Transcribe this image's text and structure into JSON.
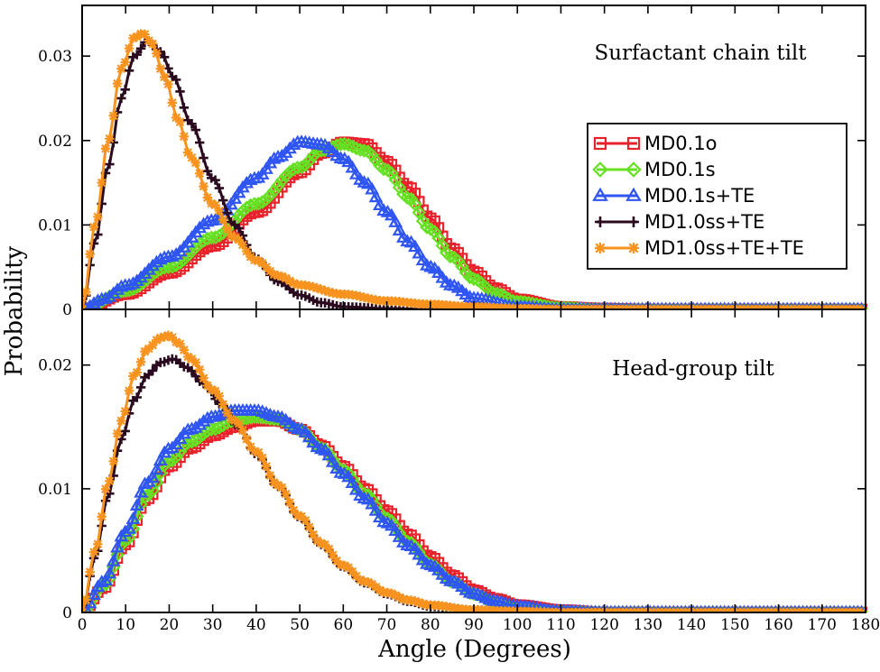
{
  "figure": {
    "xlabel": "Angle (Degrees)",
    "ylabel": "Probability"
  },
  "colors": {
    "MD0.1o": "#e8222b",
    "MD0.1s": "#66e022",
    "MD0.1s+TE": "#2f55f2",
    "MD1.0ss+TE": "#2a0a1e",
    "MD1.0ss+TE+TE": "#f7931e"
  },
  "chart_data": [
    {
      "type": "line",
      "panel": "top",
      "title": "Surfactant chain tilt",
      "xlabel": "Angle (Degrees)",
      "ylabel": "Probability",
      "xlim": [
        0,
        180
      ],
      "ylim": [
        0,
        0.036
      ],
      "xticks": [
        0,
        10,
        20,
        30,
        40,
        50,
        60,
        70,
        80,
        90,
        100,
        110,
        120,
        130,
        140,
        150,
        160,
        170,
        180
      ],
      "yticks": [
        0,
        0.01,
        0.02,
        0.03
      ],
      "ytick_labels": [
        "0",
        "0.01",
        "0.02",
        "0.03"
      ],
      "legend": {
        "position": "right",
        "entries": [
          "MD0.1o",
          "MD0.1s",
          "MD0.1s+TE",
          "MD1.0ss+TE",
          "MD1.0ss+TE+TE"
        ]
      },
      "series": [
        {
          "name": "MD0.1o",
          "marker": "square",
          "points": [
            [
              0,
              0
            ],
            [
              10,
              0.0018
            ],
            [
              20,
              0.0043
            ],
            [
              30,
              0.0075
            ],
            [
              40,
              0.0115
            ],
            [
              50,
              0.0162
            ],
            [
              55,
              0.0185
            ],
            [
              60,
              0.0198
            ],
            [
              65,
              0.0196
            ],
            [
              70,
              0.0175
            ],
            [
              75,
              0.0145
            ],
            [
              80,
              0.0108
            ],
            [
              85,
              0.0072
            ],
            [
              90,
              0.0045
            ],
            [
              95,
              0.0025
            ],
            [
              100,
              0.0012
            ],
            [
              110,
              0.0003
            ],
            [
              120,
              0.0001
            ],
            [
              130,
              0
            ],
            [
              180,
              0
            ]
          ]
        },
        {
          "name": "MD0.1s",
          "marker": "diamond",
          "points": [
            [
              0,
              0
            ],
            [
              10,
              0.0022
            ],
            [
              20,
              0.005
            ],
            [
              30,
              0.0085
            ],
            [
              40,
              0.0125
            ],
            [
              50,
              0.0168
            ],
            [
              55,
              0.0188
            ],
            [
              60,
              0.0196
            ],
            [
              65,
              0.0188
            ],
            [
              70,
              0.0165
            ],
            [
              75,
              0.0132
            ],
            [
              80,
              0.0095
            ],
            [
              85,
              0.0062
            ],
            [
              90,
              0.0036
            ],
            [
              95,
              0.0019
            ],
            [
              100,
              0.0009
            ],
            [
              110,
              0.0002
            ],
            [
              120,
              0
            ],
            [
              180,
              0
            ]
          ]
        },
        {
          "name": "MD0.1s+TE",
          "marker": "triangle",
          "points": [
            [
              0,
              0
            ],
            [
              5,
              0.0012
            ],
            [
              10,
              0.0028
            ],
            [
              20,
              0.0062
            ],
            [
              30,
              0.0105
            ],
            [
              40,
              0.0155
            ],
            [
              45,
              0.018
            ],
            [
              50,
              0.0198
            ],
            [
              55,
              0.0195
            ],
            [
              60,
              0.0178
            ],
            [
              65,
              0.015
            ],
            [
              70,
              0.0115
            ],
            [
              75,
              0.008
            ],
            [
              80,
              0.005
            ],
            [
              85,
              0.0028
            ],
            [
              90,
              0.0013
            ],
            [
              100,
              0.0003
            ],
            [
              110,
              0
            ],
            [
              180,
              0
            ]
          ]
        },
        {
          "name": "MD1.0ss+TE",
          "marker": "plus",
          "points": [
            [
              0,
              0
            ],
            [
              3,
              0.008
            ],
            [
              6,
              0.017
            ],
            [
              9,
              0.025
            ],
            [
              12,
              0.03
            ],
            [
              15,
              0.0318
            ],
            [
              18,
              0.0305
            ],
            [
              21,
              0.0275
            ],
            [
              25,
              0.022
            ],
            [
              30,
              0.0155
            ],
            [
              35,
              0.01
            ],
            [
              40,
              0.006
            ],
            [
              45,
              0.0033
            ],
            [
              50,
              0.0017
            ],
            [
              55,
              0.0008
            ],
            [
              60,
              0.0003
            ],
            [
              70,
              0.0001
            ],
            [
              80,
              0
            ],
            [
              180,
              0
            ]
          ]
        },
        {
          "name": "MD1.0ss+TE+TE",
          "marker": "star",
          "points": [
            [
              0,
              0
            ],
            [
              3,
              0.01
            ],
            [
              6,
              0.02
            ],
            [
              9,
              0.0285
            ],
            [
              12,
              0.0322
            ],
            [
              14,
              0.0327
            ],
            [
              16,
              0.0315
            ],
            [
              19,
              0.0275
            ],
            [
              22,
              0.0225
            ],
            [
              25,
              0.018
            ],
            [
              30,
              0.0125
            ],
            [
              35,
              0.0085
            ],
            [
              40,
              0.0058
            ],
            [
              45,
              0.004
            ],
            [
              50,
              0.0029
            ],
            [
              60,
              0.0018
            ],
            [
              70,
              0.001
            ],
            [
              80,
              0.0006
            ],
            [
              90,
              0.0003
            ],
            [
              100,
              0.0001
            ],
            [
              110,
              0
            ],
            [
              180,
              0
            ]
          ]
        }
      ]
    },
    {
      "type": "line",
      "panel": "bottom",
      "title": "Head-group tilt",
      "xlabel": "Angle (Degrees)",
      "ylabel": "Probability",
      "xlim": [
        0,
        180
      ],
      "ylim": [
        0,
        0.0245
      ],
      "xticks": [
        0,
        10,
        20,
        30,
        40,
        50,
        60,
        70,
        80,
        90,
        100,
        110,
        120,
        130,
        140,
        150,
        160,
        170,
        180
      ],
      "xtick_labels": [
        "0",
        "10",
        "20",
        "30",
        "40",
        "50",
        "60",
        "70",
        "80",
        "90",
        "100",
        "110",
        "120",
        "130",
        "140",
        "150",
        "160",
        "170",
        "180"
      ],
      "yticks": [
        0,
        0.01,
        0.02
      ],
      "ytick_labels": [
        "0",
        "0.01",
        "0.02"
      ],
      "series": [
        {
          "name": "MD0.1o",
          "marker": "square",
          "points": [
            [
              0,
              0
            ],
            [
              5,
              0.002
            ],
            [
              10,
              0.0055
            ],
            [
              15,
              0.0092
            ],
            [
              20,
              0.0118
            ],
            [
              25,
              0.0133
            ],
            [
              30,
              0.0143
            ],
            [
              35,
              0.015
            ],
            [
              40,
              0.0155
            ],
            [
              45,
              0.0155
            ],
            [
              50,
              0.0148
            ],
            [
              55,
              0.0135
            ],
            [
              60,
              0.0118
            ],
            [
              65,
              0.01
            ],
            [
              70,
              0.0082
            ],
            [
              75,
              0.0063
            ],
            [
              80,
              0.0045
            ],
            [
              85,
              0.003
            ],
            [
              90,
              0.0018
            ],
            [
              95,
              0.0011
            ],
            [
              100,
              0.0006
            ],
            [
              110,
              0.0002
            ],
            [
              120,
              0
            ],
            [
              180,
              0
            ]
          ]
        },
        {
          "name": "MD0.1s",
          "marker": "diamond",
          "points": [
            [
              0,
              0
            ],
            [
              5,
              0.0022
            ],
            [
              10,
              0.0058
            ],
            [
              15,
              0.0095
            ],
            [
              20,
              0.0122
            ],
            [
              25,
              0.0138
            ],
            [
              30,
              0.0148
            ],
            [
              35,
              0.0155
            ],
            [
              40,
              0.0158
            ],
            [
              45,
              0.0156
            ],
            [
              50,
              0.0148
            ],
            [
              55,
              0.0133
            ],
            [
              60,
              0.0115
            ],
            [
              65,
              0.0096
            ],
            [
              70,
              0.0076
            ],
            [
              75,
              0.0057
            ],
            [
              80,
              0.0039
            ],
            [
              85,
              0.0025
            ],
            [
              90,
              0.0015
            ],
            [
              95,
              0.0008
            ],
            [
              100,
              0.0004
            ],
            [
              110,
              0.0001
            ],
            [
              120,
              0
            ],
            [
              180,
              0
            ]
          ]
        },
        {
          "name": "MD0.1s+TE",
          "marker": "triangle",
          "points": [
            [
              0,
              0
            ],
            [
              5,
              0.0025
            ],
            [
              10,
              0.0065
            ],
            [
              15,
              0.0105
            ],
            [
              20,
              0.0132
            ],
            [
              25,
              0.0148
            ],
            [
              30,
              0.0158
            ],
            [
              35,
              0.0163
            ],
            [
              40,
              0.0163
            ],
            [
              45,
              0.0158
            ],
            [
              50,
              0.0148
            ],
            [
              55,
              0.0132
            ],
            [
              60,
              0.0112
            ],
            [
              65,
              0.0092
            ],
            [
              70,
              0.0072
            ],
            [
              75,
              0.0054
            ],
            [
              80,
              0.0038
            ],
            [
              85,
              0.0025
            ],
            [
              90,
              0.0015
            ],
            [
              95,
              0.0009
            ],
            [
              100,
              0.0005
            ],
            [
              110,
              0.0001
            ],
            [
              120,
              0
            ],
            [
              180,
              0
            ]
          ]
        },
        {
          "name": "MD1.0ss+TE",
          "marker": "plus",
          "points": [
            [
              0,
              0
            ],
            [
              3,
              0.0045
            ],
            [
              6,
              0.0095
            ],
            [
              9,
              0.014
            ],
            [
              12,
              0.0172
            ],
            [
              15,
              0.0192
            ],
            [
              18,
              0.0202
            ],
            [
              21,
              0.0205
            ],
            [
              24,
              0.0198
            ],
            [
              28,
              0.0185
            ],
            [
              32,
              0.0168
            ],
            [
              36,
              0.015
            ],
            [
              40,
              0.0128
            ],
            [
              45,
              0.0102
            ],
            [
              50,
              0.0077
            ],
            [
              55,
              0.0055
            ],
            [
              60,
              0.0037
            ],
            [
              65,
              0.0024
            ],
            [
              70,
              0.0015
            ],
            [
              75,
              0.0009
            ],
            [
              80,
              0.0005
            ],
            [
              90,
              0.0002
            ],
            [
              100,
              0
            ],
            [
              180,
              0
            ]
          ]
        },
        {
          "name": "MD1.0ss+TE+TE",
          "marker": "star",
          "points": [
            [
              0,
              0
            ],
            [
              3,
              0.005
            ],
            [
              6,
              0.0105
            ],
            [
              9,
              0.0155
            ],
            [
              12,
              0.0192
            ],
            [
              15,
              0.0213
            ],
            [
              18,
              0.0222
            ],
            [
              20,
              0.0224
            ],
            [
              22,
              0.0218
            ],
            [
              25,
              0.0205
            ],
            [
              30,
              0.018
            ],
            [
              35,
              0.0155
            ],
            [
              40,
              0.013
            ],
            [
              45,
              0.0103
            ],
            [
              50,
              0.0078
            ],
            [
              55,
              0.0056
            ],
            [
              60,
              0.0038
            ],
            [
              65,
              0.0025
            ],
            [
              70,
              0.0016
            ],
            [
              75,
              0.001
            ],
            [
              80,
              0.0006
            ],
            [
              90,
              0.0002
            ],
            [
              100,
              0.0001
            ],
            [
              110,
              0
            ],
            [
              180,
              0
            ]
          ]
        }
      ]
    }
  ]
}
